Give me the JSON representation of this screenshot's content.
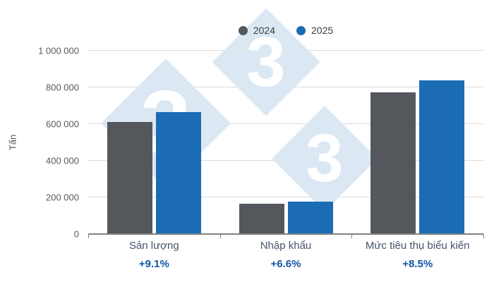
{
  "chart_data": {
    "type": "bar",
    "categories": [
      "Sản lượng",
      "Nhập khẩu",
      "Mức tiêu thụ biểu kiến"
    ],
    "series": [
      {
        "name": "2024",
        "color": "#54575c",
        "values": [
          610000,
          165000,
          775000
        ]
      },
      {
        "name": "2025",
        "color": "#1b6cb5",
        "values": [
          665000,
          176000,
          840000
        ]
      }
    ],
    "change_labels": [
      "+9.1%",
      "+6.6%",
      "+8.5%"
    ],
    "title": "",
    "xlabel": "",
    "ylabel": "Tấn",
    "ylim": [
      0,
      1000000
    ],
    "ytick_step": 200000,
    "ytick_labels": [
      "0",
      "200 000",
      "400 000",
      "600 000",
      "800 000",
      "1 000 000"
    ],
    "grid": true,
    "legend_position": "top-center"
  },
  "watermark": {
    "digit": "3",
    "fill": "#dbe8f4",
    "digit_color": "#ffffff"
  },
  "colors": {
    "grid": "#dcdcdc",
    "axis": "#808080",
    "tick_text": "#595959",
    "category_text": "#44546a",
    "pct_text": "#1156a5",
    "legend_text": "#3d3d3d"
  }
}
